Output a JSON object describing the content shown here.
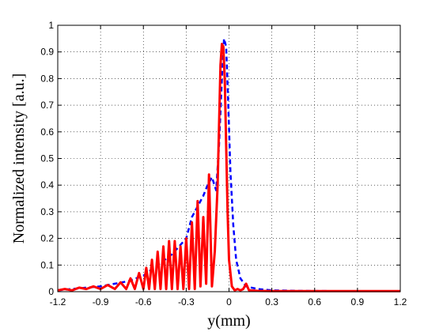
{
  "chart_data": {
    "type": "line",
    "xlabel": "y(mm)",
    "ylabel": "Normalized intensity [a.u.]",
    "xlim": [
      -1.2,
      1.2
    ],
    "ylim": [
      0,
      1
    ],
    "grid": true,
    "x_ticks": [
      -1.2,
      -0.9,
      -0.6,
      -0.3,
      0,
      0.3,
      0.6,
      0.9,
      1.2
    ],
    "x_tick_labels": [
      "-1.2",
      "-0.9",
      "-0.6",
      "-0.3",
      "0",
      "0.3",
      "0.6",
      "0.9",
      "1.2"
    ],
    "y_ticks": [
      0,
      0.1,
      0.2,
      0.3,
      0.4,
      0.5,
      0.6,
      0.7,
      0.8,
      0.9,
      1
    ],
    "y_tick_labels": [
      "0",
      "0.1",
      "0.2",
      "0.3",
      "0.4",
      "0.5",
      "0.6",
      "0.7",
      "0.8",
      "0.9",
      "1"
    ],
    "series": [
      {
        "color": "#0000ff",
        "style": "dashed",
        "x": [
          -1.2,
          -1.1,
          -1.0,
          -0.9,
          -0.8,
          -0.7,
          -0.65,
          -0.6,
          -0.55,
          -0.5,
          -0.45,
          -0.4,
          -0.35,
          -0.3,
          -0.26,
          -0.22,
          -0.18,
          -0.15,
          -0.12,
          -0.09,
          -0.07,
          -0.05,
          -0.035,
          -0.02,
          -0.005,
          0.01,
          0.03,
          0.05,
          0.08,
          0.12,
          0.2,
          0.3,
          0.5,
          0.8,
          1.2
        ],
        "y": [
          0.005,
          0.01,
          0.015,
          0.02,
          0.03,
          0.04,
          0.05,
          0.06,
          0.08,
          0.1,
          0.12,
          0.14,
          0.17,
          0.2,
          0.28,
          0.32,
          0.36,
          0.4,
          0.43,
          0.38,
          0.55,
          0.8,
          0.95,
          0.92,
          0.7,
          0.45,
          0.25,
          0.12,
          0.05,
          0.02,
          0.01,
          0.005,
          0.003,
          0.002,
          0.002
        ]
      },
      {
        "color": "#ff0000",
        "style": "solid",
        "x": [
          -1.2,
          -1.15,
          -1.1,
          -1.05,
          -1.0,
          -0.95,
          -0.9,
          -0.85,
          -0.8,
          -0.76,
          -0.72,
          -0.69,
          -0.66,
          -0.63,
          -0.6,
          -0.58,
          -0.56,
          -0.54,
          -0.52,
          -0.5,
          -0.48,
          -0.46,
          -0.44,
          -0.42,
          -0.4,
          -0.38,
          -0.36,
          -0.34,
          -0.32,
          -0.3,
          -0.28,
          -0.26,
          -0.24,
          -0.22,
          -0.2,
          -0.18,
          -0.16,
          -0.14,
          -0.12,
          -0.1,
          -0.08,
          -0.06,
          -0.05,
          -0.04,
          -0.03,
          -0.02,
          -0.01,
          0.0,
          0.02,
          0.04,
          0.06,
          0.08,
          0.1,
          0.12,
          0.14,
          0.2,
          0.3,
          0.5,
          0.8,
          1.2
        ],
        "y": [
          0.005,
          0.01,
          0.005,
          0.015,
          0.01,
          0.02,
          0.01,
          0.025,
          0.01,
          0.035,
          0.01,
          0.05,
          0.01,
          0.07,
          0.01,
          0.09,
          0.01,
          0.12,
          0.01,
          0.15,
          0.01,
          0.17,
          0.01,
          0.19,
          0.01,
          0.19,
          0.01,
          0.17,
          0.01,
          0.2,
          0.01,
          0.26,
          0.01,
          0.34,
          0.02,
          0.28,
          0.03,
          0.44,
          0.02,
          0.15,
          0.4,
          0.85,
          0.93,
          0.92,
          0.8,
          0.55,
          0.3,
          0.12,
          0.02,
          0.005,
          0.01,
          0.005,
          0.01,
          0.03,
          0.005,
          0.003,
          0.002,
          0.002,
          0.002,
          0.002
        ]
      }
    ]
  }
}
